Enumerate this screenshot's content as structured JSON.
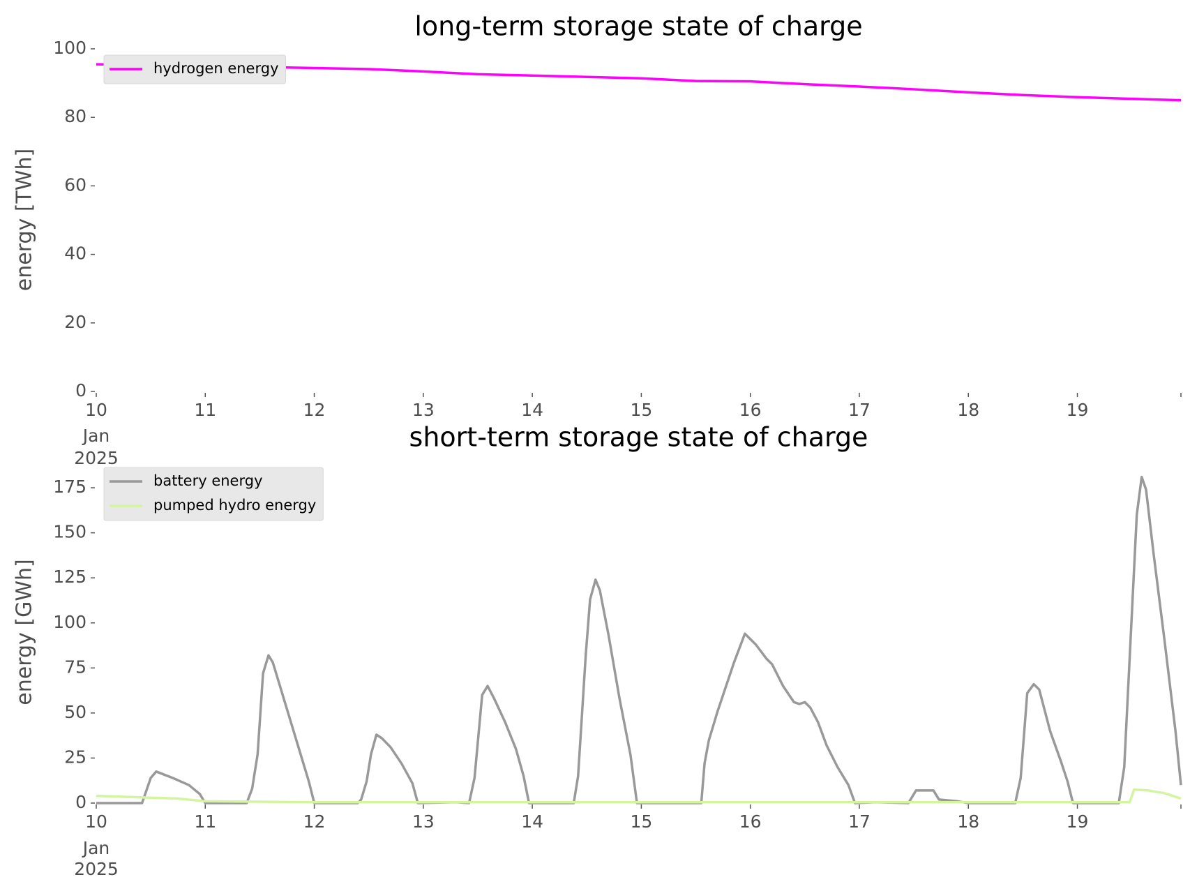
{
  "chart_data": [
    {
      "type": "line",
      "title": "long-term storage state of charge",
      "y_label": "energy [TWh]",
      "xlim": [
        10,
        19.95
      ],
      "xticks": [
        10,
        11,
        12,
        13,
        14,
        15,
        16,
        17,
        18,
        19
      ],
      "x_date_sublabel": [
        "Jan",
        "2025"
      ],
      "ylim": [
        0,
        100
      ],
      "yticks": [
        0,
        20,
        40,
        60,
        80,
        100
      ],
      "grid": false,
      "legend": "upper left",
      "series": [
        {
          "name": "hydrogen energy",
          "color": "#ff00ff",
          "x": [
            10,
            10.5,
            11,
            11.5,
            12,
            12.5,
            13,
            13.5,
            14,
            14.5,
            15,
            15.5,
            16,
            16.5,
            17,
            17.5,
            18,
            18.5,
            19,
            19.5,
            19.95
          ],
          "values": [
            95.5,
            95.3,
            95,
            94.7,
            94.4,
            94.1,
            93.4,
            92.6,
            92.2,
            91.8,
            91.4,
            90.6,
            90.5,
            89.7,
            89,
            88.2,
            87.3,
            86.5,
            85.9,
            85.4,
            85
          ]
        }
      ]
    },
    {
      "type": "line",
      "title": "short-term storage state of charge",
      "y_label": "energy [GWh]",
      "xlim": [
        10,
        19.95
      ],
      "xticks": [
        10,
        11,
        12,
        13,
        14,
        15,
        16,
        17,
        18,
        19
      ],
      "x_date_sublabel": [
        "Jan",
        "2025"
      ],
      "ylim": [
        0,
        182
      ],
      "yticks": [
        0,
        25,
        50,
        75,
        100,
        125,
        150,
        175
      ],
      "grid": false,
      "legend": "upper left",
      "series": [
        {
          "name": "battery energy",
          "color": "#999999",
          "x": [
            10,
            10.42,
            10.5,
            10.55,
            10.7,
            10.85,
            10.95,
            11,
            11.38,
            11.43,
            11.48,
            11.53,
            11.58,
            11.62,
            11.7,
            11.8,
            11.9,
            11.95,
            12,
            12.4,
            12.43,
            12.48,
            12.52,
            12.57,
            12.62,
            12.7,
            12.8,
            12.9,
            12.95,
            13.3,
            13.42,
            13.47,
            13.54,
            13.59,
            13.65,
            13.75,
            13.85,
            13.92,
            13.97,
            14.38,
            14.42,
            14.49,
            14.53,
            14.58,
            14.62,
            14.7,
            14.8,
            14.9,
            14.96,
            15.55,
            15.58,
            15.62,
            15.7,
            15.85,
            15.95,
            16.05,
            16.15,
            16.2,
            16.3,
            16.4,
            16.45,
            16.5,
            16.55,
            16.62,
            16.7,
            16.8,
            16.9,
            16.96,
            17.15,
            17.45,
            17.52,
            17.62,
            17.68,
            17.73,
            17.9,
            18,
            18.43,
            18.48,
            18.54,
            18.6,
            18.65,
            18.75,
            18.85,
            18.91,
            18.96,
            19.38,
            19.43,
            19.545,
            19.59,
            19.63,
            19.7,
            19.8,
            19.9,
            19.95
          ],
          "values": [
            0,
            0,
            14,
            17.5,
            14,
            10,
            5,
            0,
            0,
            8,
            27,
            72,
            82,
            78,
            62,
            42,
            22,
            12,
            0,
            0,
            2,
            12,
            27,
            38,
            36,
            31,
            22,
            11,
            0,
            0.5,
            0,
            14,
            60,
            65,
            58,
            45,
            30,
            15,
            0,
            0,
            15,
            82,
            113,
            124,
            118,
            93,
            58,
            27,
            0,
            0,
            22,
            35,
            51,
            78,
            94,
            88,
            80,
            77,
            65,
            56,
            55,
            56,
            53,
            45,
            32,
            20,
            10,
            0,
            0.5,
            0,
            7,
            7,
            7,
            2,
            1,
            0,
            0,
            14,
            61,
            66,
            63,
            40,
            23,
            12,
            0,
            0,
            20,
            160,
            181,
            174,
            138,
            90,
            40,
            10
          ]
        },
        {
          "name": "pumped hydro energy",
          "color": "#d4f5a0",
          "x": [
            10,
            10.5,
            10.75,
            11,
            12,
            19.48,
            19.52,
            19.65,
            19.8,
            19.95
          ],
          "values": [
            4,
            3,
            2.5,
            1,
            0.5,
            0.5,
            7.5,
            7,
            5.5,
            2.5
          ]
        }
      ]
    }
  ]
}
